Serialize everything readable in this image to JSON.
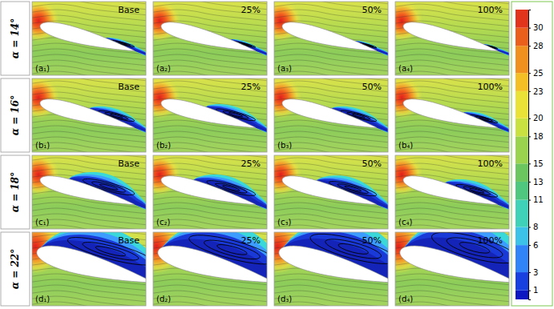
{
  "chart_data": {
    "type": "contour_grid",
    "rows": [
      "α = 14°",
      "α = 16°",
      "α = 18°",
      "α = 22°"
    ],
    "columns": [
      "Base",
      "25%",
      "50%",
      "100%"
    ],
    "panel_labels": [
      [
        "(a₁)",
        "(a₂)",
        "(a₃)",
        "(a₄)"
      ],
      [
        "(b₁)",
        "(b₂)",
        "(b₃)",
        "(b₄)"
      ],
      [
        "(c₁)",
        "(c₂)",
        "(c₃)",
        "(c₄)"
      ],
      [
        "(d₁)",
        "(d₂)",
        "(d₃)",
        "(d₄)"
      ]
    ],
    "colorbar": {
      "range": [
        0,
        32
      ],
      "ticks": [
        1,
        3,
        6,
        8,
        11,
        13,
        15,
        18,
        20,
        23,
        25,
        28,
        30
      ]
    }
  }
}
